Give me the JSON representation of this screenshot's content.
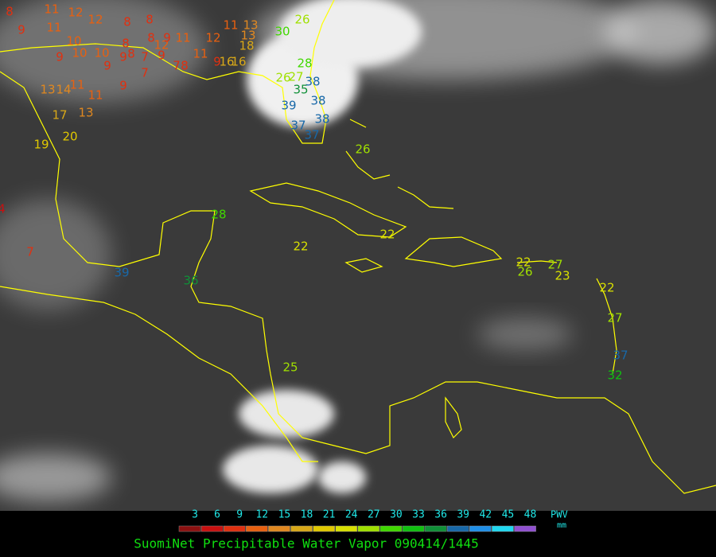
{
  "title": "SuomiNet Precipitable Water Vapor 090414/1445",
  "colorbar": {
    "ticks": [
      3,
      6,
      9,
      12,
      15,
      18,
      21,
      24,
      27,
      30,
      33,
      36,
      39,
      42,
      45,
      48
    ],
    "colors": [
      "#8b1010",
      "#c81010",
      "#e03010",
      "#e86010",
      "#e08820",
      "#d8a818",
      "#e0c800",
      "#d8e000",
      "#a0e000",
      "#40d800",
      "#10c010",
      "#109038",
      "#1868a8",
      "#2090e8",
      "#20d8f0",
      "#9050d0"
    ],
    "quantity": "PWV",
    "unit": "mm"
  },
  "stations": [
    8,
    9,
    11,
    12,
    12,
    8,
    8,
    11,
    10,
    9,
    10,
    10,
    8,
    8,
    12,
    9,
    11,
    12,
    11,
    13,
    13,
    18,
    9,
    9,
    8,
    7,
    9,
    7,
    8,
    11,
    9,
    16,
    16,
    7,
    9,
    11,
    11,
    14,
    13,
    17,
    13,
    20,
    19,
    4,
    7,
    30,
    26,
    28,
    26,
    27,
    38,
    35,
    38,
    39,
    38,
    37,
    37,
    26,
    28,
    22,
    22,
    39,
    36,
    22,
    26,
    27,
    23,
    22,
    27,
    37,
    32,
    25
  ]
}
